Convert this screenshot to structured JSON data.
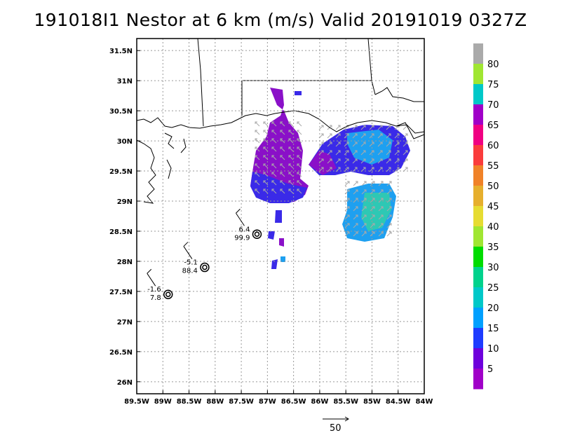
{
  "title": "191018I1 Nestor at 6 km (m/s) Valid 20191019 0327Z",
  "map": {
    "lat_labels": [
      "31.5N",
      "31N",
      "30.5N",
      "30N",
      "29.5N",
      "29N",
      "28.5N",
      "28N",
      "27.5N",
      "27N",
      "26.5N",
      "26N"
    ],
    "lon_labels": [
      "89.5W",
      "89W",
      "88.5W",
      "88W",
      "87.5W",
      "87W",
      "86.5W",
      "86W",
      "85.5W",
      "85W",
      "84.5W",
      "84W"
    ],
    "lon_range": [
      -89.5,
      -84
    ],
    "lat_range": [
      25.8,
      31.7
    ],
    "grid": true
  },
  "colorbar": {
    "labels": [
      "5",
      "10",
      "15",
      "20",
      "25",
      "30",
      "35",
      "40",
      "45",
      "50",
      "55",
      "60",
      "65",
      "70",
      "75",
      "80"
    ],
    "colors": [
      "#a000c8",
      "#6e00dc",
      "#1e3cff",
      "#00a0ff",
      "#00c8c8",
      "#00d28c",
      "#00dc00",
      "#a0e632",
      "#e6dc32",
      "#e6af2d",
      "#f08228",
      "#fa3c3c",
      "#f00082",
      "#a000c8",
      "#00c8c8",
      "#a0e632",
      "#aaaaaa"
    ]
  },
  "centers": [
    {
      "lon": -87.2,
      "lat": 28.45,
      "top": "6.4",
      "bottom": "99.9"
    },
    {
      "lon": -88.2,
      "lat": 27.9,
      "top": "-5.1",
      "bottom": "88.4"
    },
    {
      "lon": -88.9,
      "lat": 27.45,
      "top": "-1.6",
      "bottom": "7.8"
    }
  ],
  "reference_vector": {
    "label": "50"
  }
}
